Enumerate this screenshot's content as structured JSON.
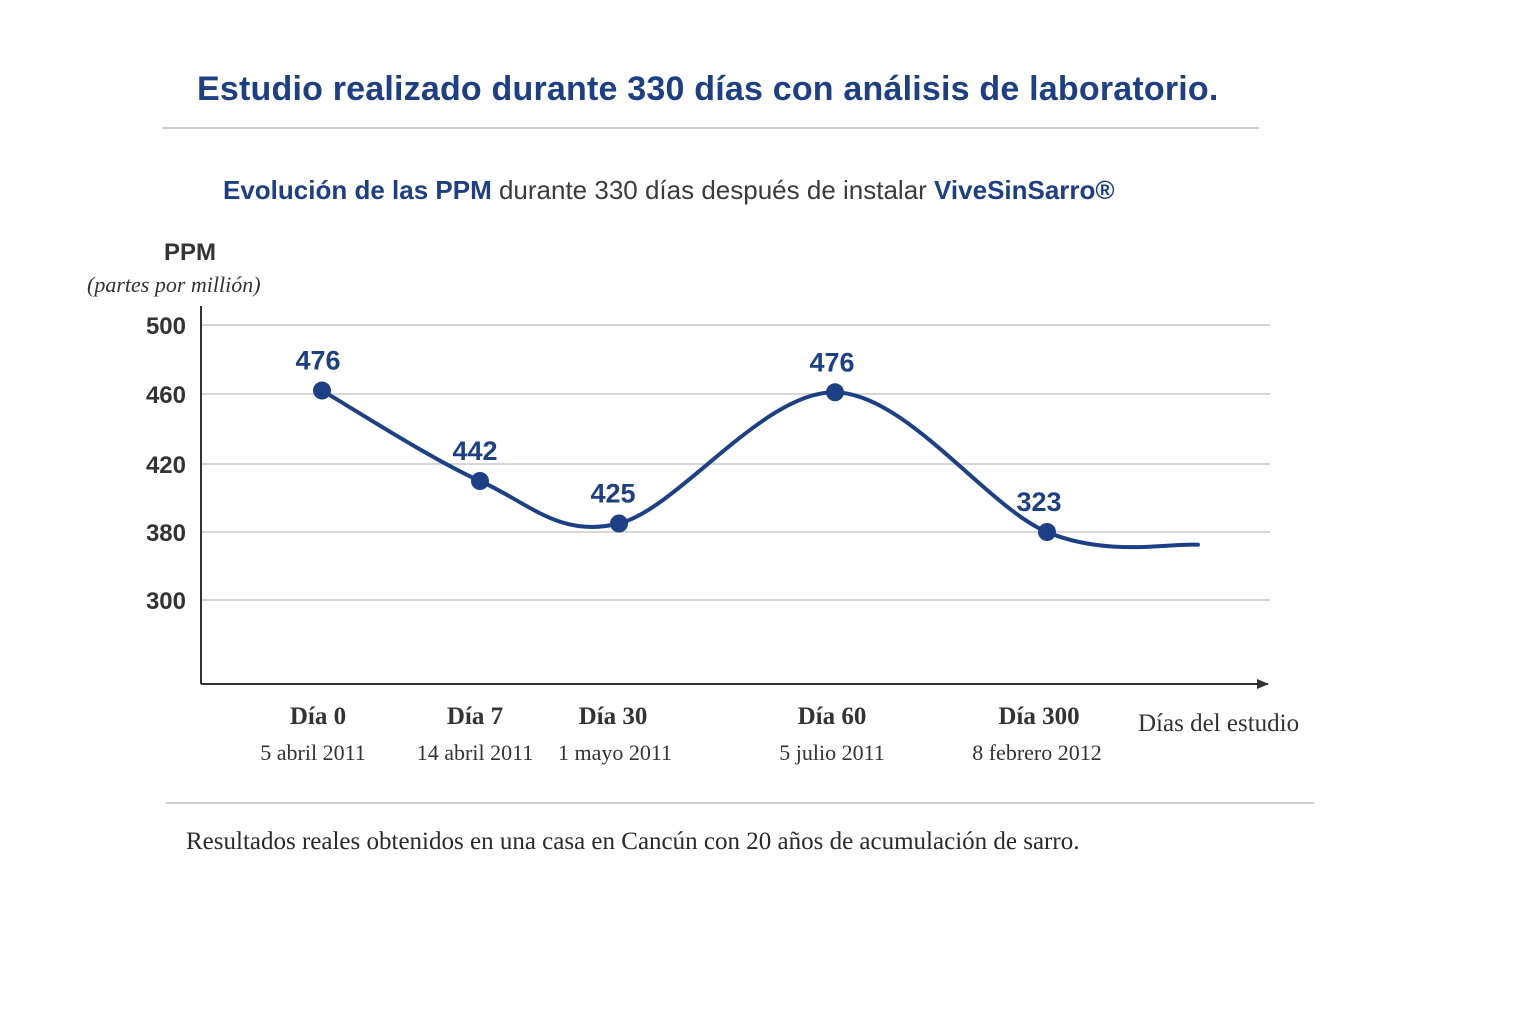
{
  "header": {
    "title": "Estudio realizado durante 330 días con análisis de laboratorio."
  },
  "chart_data": {
    "type": "line",
    "title_parts": {
      "highlight1": "Evolución de las PPM",
      "middle": " durante 330 días después de instalar ",
      "highlight2": "ViveSinSarro®"
    },
    "ylabel": "PPM",
    "ylabel_sub": "(partes por millión)",
    "xlabel": "Días del estudio",
    "y_ticks": [
      "500",
      "460",
      "420",
      "380",
      "300"
    ],
    "grid": true,
    "categories": [
      {
        "label": "Día 0",
        "date": "5 abril 2011"
      },
      {
        "label": "Día 7",
        "date": "14 abril 2011"
      },
      {
        "label": "Día 30",
        "date": "1 mayo 2011"
      },
      {
        "label": "Día 60",
        "date": "5 julio 2011"
      },
      {
        "label": "Día 300",
        "date": "8 febrero 2012"
      }
    ],
    "series": [
      {
        "name": "PPM",
        "values": [
          476,
          442,
          425,
          476,
          323
        ],
        "data_labels": [
          "476",
          "442",
          "425",
          "476",
          "323"
        ],
        "plotted_levels": [
          462,
          410,
          385,
          461,
          380
        ],
        "tail_level": 365
      }
    ],
    "colors": {
      "series": "#1c3f86",
      "grid": "#c8c8c8",
      "axis": "#333333",
      "tick_text": "#333333"
    }
  },
  "footer": {
    "note": "Resultados reales obtenidos en una casa en Cancún con 20 años de acumulación de sarro."
  }
}
